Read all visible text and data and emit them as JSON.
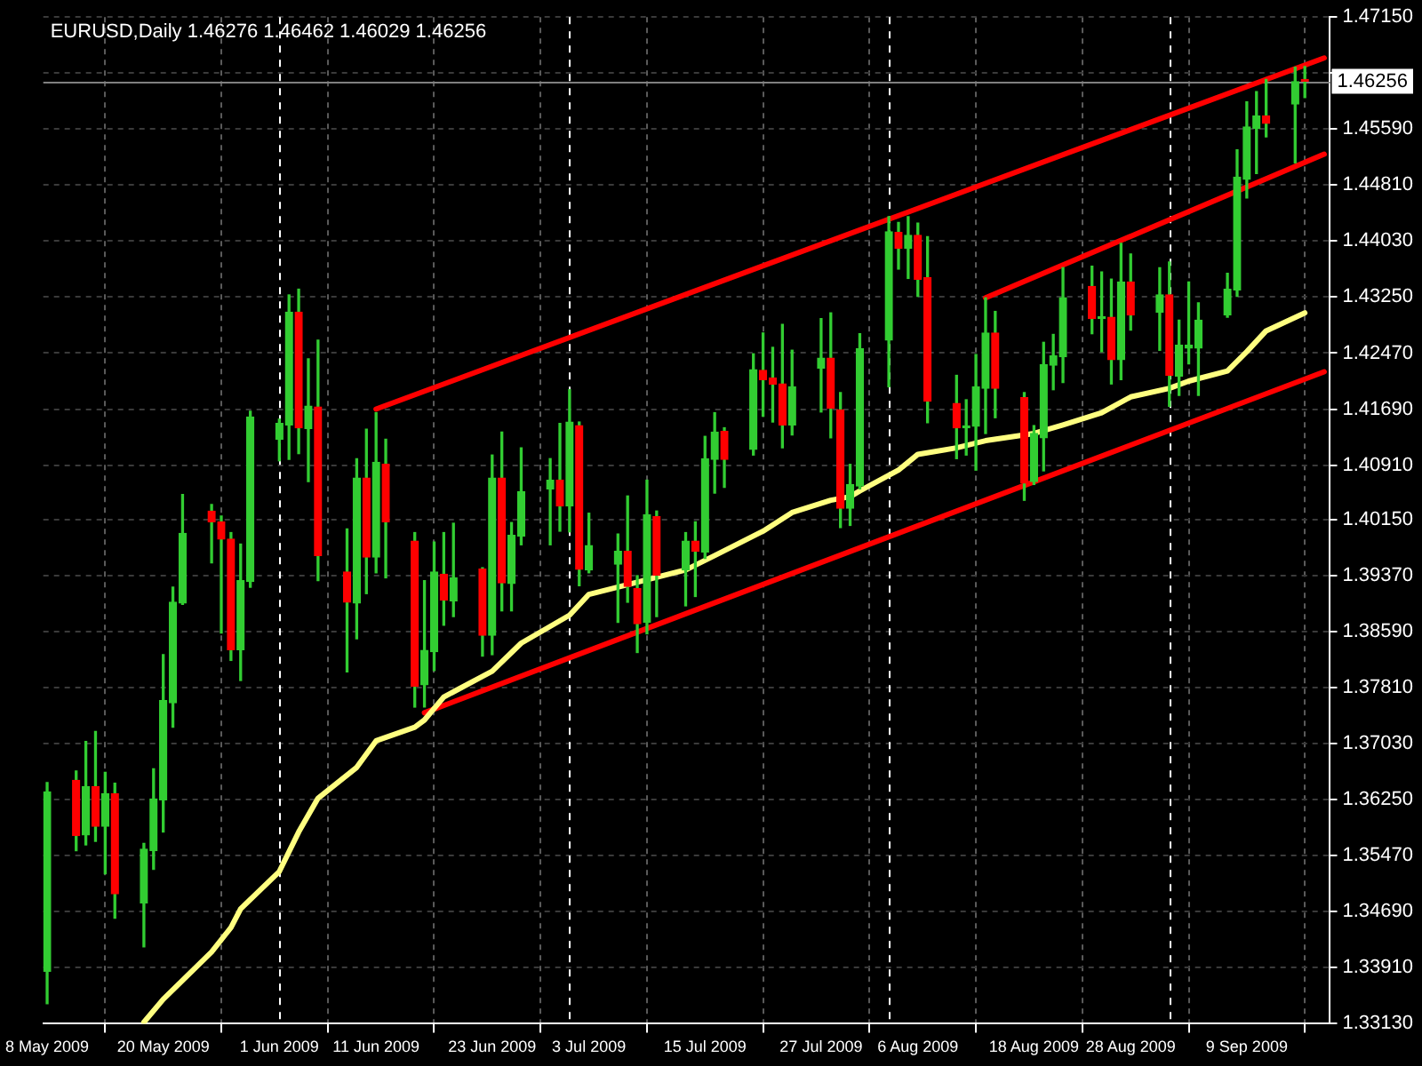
{
  "chart_data": {
    "type": "candlestick",
    "title": "EURUSD,Daily 1.46276 1.46462 1.46029 1.46256",
    "x": [
      "2009-05-08",
      "2009-05-11",
      "2009-05-12",
      "2009-05-13",
      "2009-05-14",
      "2009-05-15",
      "2009-05-18",
      "2009-05-19",
      "2009-05-20",
      "2009-05-21",
      "2009-05-22",
      "2009-05-25",
      "2009-05-26",
      "2009-05-27",
      "2009-05-28",
      "2009-05-29",
      "2009-06-01",
      "2009-06-02",
      "2009-06-03",
      "2009-06-04",
      "2009-06-05",
      "2009-06-08",
      "2009-06-09",
      "2009-06-10",
      "2009-06-11",
      "2009-06-12",
      "2009-06-15",
      "2009-06-16",
      "2009-06-17",
      "2009-06-18",
      "2009-06-19",
      "2009-06-22",
      "2009-06-23",
      "2009-06-24",
      "2009-06-25",
      "2009-06-26",
      "2009-06-29",
      "2009-06-30",
      "2009-07-01",
      "2009-07-02",
      "2009-07-03",
      "2009-07-06",
      "2009-07-07",
      "2009-07-08",
      "2009-07-09",
      "2009-07-10",
      "2009-07-13",
      "2009-07-14",
      "2009-07-15",
      "2009-07-16",
      "2009-07-17",
      "2009-07-20",
      "2009-07-21",
      "2009-07-22",
      "2009-07-23",
      "2009-07-24",
      "2009-07-27",
      "2009-07-28",
      "2009-07-29",
      "2009-07-30",
      "2009-07-31",
      "2009-08-03",
      "2009-08-04",
      "2009-08-05",
      "2009-08-06",
      "2009-08-07",
      "2009-08-10",
      "2009-08-11",
      "2009-08-12",
      "2009-08-13",
      "2009-08-14",
      "2009-08-17",
      "2009-08-18",
      "2009-08-19",
      "2009-08-20",
      "2009-08-21",
      "2009-08-24",
      "2009-08-25",
      "2009-08-26",
      "2009-08-27",
      "2009-08-28",
      "2009-08-31",
      "2009-09-01",
      "2009-09-02",
      "2009-09-03",
      "2009-09-04",
      "2009-09-07",
      "2009-09-08",
      "2009-09-09",
      "2009-09-10",
      "2009-09-11",
      "2009-09-14",
      "2009-09-15"
    ],
    "ohlc": [
      [
        1.3386,
        1.3649,
        1.3341,
        1.3636
      ],
      [
        1.3652,
        1.3665,
        1.3554,
        1.3575
      ],
      [
        1.3576,
        1.3706,
        1.3562,
        1.3643
      ],
      [
        1.3643,
        1.372,
        1.3567,
        1.3588
      ],
      [
        1.3588,
        1.3663,
        1.3522,
        1.3633
      ],
      [
        1.3633,
        1.3648,
        1.346,
        1.3494
      ],
      [
        1.3481,
        1.3564,
        1.342,
        1.3556
      ],
      [
        1.3554,
        1.3668,
        1.3528,
        1.3626
      ],
      [
        1.3625,
        1.3827,
        1.358,
        1.3763
      ],
      [
        1.376,
        1.3921,
        1.3726,
        1.39
      ],
      [
        1.3899,
        1.405,
        1.3897,
        1.3996
      ],
      [
        1.4027,
        1.4036,
        1.3955,
        1.4012
      ],
      [
        1.4012,
        1.402,
        1.3857,
        1.3988
      ],
      [
        1.3988,
        1.3997,
        1.3819,
        1.3834
      ],
      [
        1.3834,
        1.3981,
        1.3791,
        1.393
      ],
      [
        1.3929,
        1.4166,
        1.3921,
        1.4158
      ],
      [
        1.4127,
        1.4155,
        1.4097,
        1.4149
      ],
      [
        1.4147,
        1.4328,
        1.4099,
        1.4304
      ],
      [
        1.4304,
        1.4336,
        1.4107,
        1.4143
      ],
      [
        1.4142,
        1.4239,
        1.4068,
        1.4173
      ],
      [
        1.4172,
        1.4265,
        1.393,
        1.3965
      ],
      [
        1.3942,
        1.4002,
        1.3803,
        1.39
      ],
      [
        1.3899,
        1.41,
        1.3849,
        1.4073
      ],
      [
        1.4073,
        1.4141,
        1.3912,
        1.3963
      ],
      [
        1.3963,
        1.4164,
        1.3941,
        1.4095
      ],
      [
        1.4092,
        1.4127,
        1.3934,
        1.4012
      ],
      [
        1.3985,
        1.3997,
        1.3754,
        1.3783
      ],
      [
        1.3785,
        1.393,
        1.3754,
        1.3833
      ],
      [
        1.3831,
        1.3984,
        1.3805,
        1.3942
      ],
      [
        1.3939,
        1.3997,
        1.3868,
        1.3903
      ],
      [
        1.3902,
        1.401,
        1.388,
        1.3934
      ],
      [
        1.3946,
        1.3948,
        1.3825,
        1.3854
      ],
      [
        1.3854,
        1.4105,
        1.3827,
        1.4073
      ],
      [
        1.4073,
        1.4137,
        1.3888,
        1.3927
      ],
      [
        1.3926,
        1.4011,
        1.3888,
        1.3993
      ],
      [
        1.3992,
        1.4115,
        1.398,
        1.4054
      ],
      [
        1.4058,
        1.41,
        1.398,
        1.407
      ],
      [
        1.407,
        1.4149,
        1.3999,
        1.4034
      ],
      [
        1.4034,
        1.4196,
        1.3998,
        1.4151
      ],
      [
        1.4146,
        1.4151,
        1.3923,
        1.3946
      ],
      [
        1.3945,
        1.4024,
        1.3941,
        1.3979
      ],
      [
        1.3953,
        1.3995,
        1.3872,
        1.3971
      ],
      [
        1.3971,
        1.4048,
        1.39,
        1.3922
      ],
      [
        1.3919,
        1.3937,
        1.383,
        1.387
      ],
      [
        1.3872,
        1.407,
        1.3856,
        1.4022
      ],
      [
        1.4019,
        1.4027,
        1.388,
        1.3938
      ],
      [
        1.3945,
        1.3997,
        1.3895,
        1.3985
      ],
      [
        1.3985,
        1.4012,
        1.3908,
        1.3971
      ],
      [
        1.397,
        1.4131,
        1.3961,
        1.41
      ],
      [
        1.4099,
        1.4164,
        1.4052,
        1.4137
      ],
      [
        1.4138,
        1.4143,
        1.406,
        1.4099
      ],
      [
        1.4113,
        1.4246,
        1.4105,
        1.4224
      ],
      [
        1.4223,
        1.4275,
        1.4159,
        1.421
      ],
      [
        1.4212,
        1.4255,
        1.4151,
        1.4204
      ],
      [
        1.4204,
        1.4287,
        1.4115,
        1.4147
      ],
      [
        1.4147,
        1.4251,
        1.4133,
        1.42
      ],
      [
        1.4226,
        1.4295,
        1.4165,
        1.424
      ],
      [
        1.424,
        1.4303,
        1.4129,
        1.417
      ],
      [
        1.4168,
        1.4192,
        1.4004,
        1.4031
      ],
      [
        1.4031,
        1.4092,
        1.4007,
        1.4064
      ],
      [
        1.4062,
        1.4274,
        1.4058,
        1.4253
      ],
      [
        1.4265,
        1.4437,
        1.42,
        1.4416
      ],
      [
        1.4415,
        1.4429,
        1.4364,
        1.4393
      ],
      [
        1.4393,
        1.4437,
        1.4351,
        1.4411
      ],
      [
        1.4411,
        1.4428,
        1.4326,
        1.435
      ],
      [
        1.4352,
        1.4409,
        1.415,
        1.418
      ],
      [
        1.4177,
        1.4216,
        1.41,
        1.4143
      ],
      [
        1.4143,
        1.4182,
        1.4105,
        1.4145
      ],
      [
        1.4145,
        1.4245,
        1.4084,
        1.42
      ],
      [
        1.4198,
        1.4324,
        1.4135,
        1.4275
      ],
      [
        1.4275,
        1.4305,
        1.4157,
        1.4198
      ],
      [
        1.4185,
        1.4192,
        1.4042,
        1.4066
      ],
      [
        1.4068,
        1.4146,
        1.4064,
        1.4135
      ],
      [
        1.4129,
        1.4262,
        1.4083,
        1.4231
      ],
      [
        1.423,
        1.4273,
        1.4196,
        1.4243
      ],
      [
        1.4242,
        1.4366,
        1.4206,
        1.4324
      ],
      [
        1.434,
        1.4368,
        1.4274,
        1.4295
      ],
      [
        1.4295,
        1.436,
        1.4249,
        1.4297
      ],
      [
        1.4297,
        1.435,
        1.4204,
        1.4238
      ],
      [
        1.4238,
        1.44,
        1.421,
        1.4346
      ],
      [
        1.4346,
        1.4385,
        1.4279,
        1.43
      ],
      [
        1.4304,
        1.4366,
        1.4251,
        1.4328
      ],
      [
        1.4328,
        1.4374,
        1.4173,
        1.4216
      ],
      [
        1.4215,
        1.4293,
        1.4188,
        1.4258
      ],
      [
        1.4254,
        1.4346,
        1.4232,
        1.4258
      ],
      [
        1.4254,
        1.4317,
        1.4188,
        1.4293
      ],
      [
        1.43,
        1.4358,
        1.4297,
        1.4336
      ],
      [
        1.4335,
        1.453,
        1.4326,
        1.4492
      ],
      [
        1.4489,
        1.4597,
        1.4463,
        1.4562
      ],
      [
        1.456,
        1.4611,
        1.4497,
        1.4577
      ],
      [
        1.4577,
        1.4628,
        1.4548,
        1.4567
      ],
      [
        1.4594,
        1.4645,
        1.4512,
        1.4625
      ],
      [
        1.46276,
        1.46462,
        1.46029,
        1.46256
      ]
    ],
    "color": "#32cd32",
    "colors": [
      "#32cd32",
      "#ff0000",
      "#32cd32",
      "#ff0000",
      "#32cd32",
      "#ff0000",
      "#32cd32",
      "#32cd32",
      "#32cd32",
      "#32cd32",
      "#32cd32",
      "#ff0000",
      "#ff0000",
      "#ff0000",
      "#32cd32",
      "#32cd32",
      "#32cd32",
      "#32cd32",
      "#ff0000",
      "#32cd32",
      "#ff0000",
      "#ff0000",
      "#32cd32",
      "#ff0000",
      "#32cd32",
      "#ff0000",
      "#ff0000",
      "#32cd32",
      "#32cd32",
      "#ff0000",
      "#32cd32",
      "#ff0000",
      "#32cd32",
      "#ff0000",
      "#32cd32",
      "#32cd32",
      "#32cd32",
      "#ff0000",
      "#32cd32",
      "#ff0000",
      "#32cd32",
      "#32cd32",
      "#ff0000",
      "#ff0000",
      "#32cd32",
      "#ff0000",
      "#32cd32",
      "#ff0000",
      "#32cd32",
      "#32cd32",
      "#ff0000",
      "#32cd32",
      "#ff0000",
      "#ff0000",
      "#ff0000",
      "#32cd32",
      "#32cd32",
      "#ff0000",
      "#ff0000",
      "#32cd32",
      "#32cd32",
      "#32cd32",
      "#ff0000",
      "#32cd32",
      "#ff0000",
      "#ff0000",
      "#ff0000",
      "#32cd32",
      "#32cd32",
      "#32cd32",
      "#ff0000",
      "#ff0000",
      "#32cd32",
      "#32cd32",
      "#32cd32",
      "#32cd32",
      "#ff0000",
      "#32cd32",
      "#ff0000",
      "#32cd32",
      "#ff0000",
      "#32cd32",
      "#ff0000",
      "#32cd32",
      "#32cd32",
      "#32cd32",
      "#32cd32",
      "#32cd32",
      "#32cd32",
      "#32cd32",
      "#ff0000",
      "#32cd32",
      "#ff0000"
    ],
    "series": [
      {
        "type": "line",
        "color": "#ffff80",
        "x": [
          "2009-05-18",
          "2009-05-20",
          "2009-05-25",
          "2009-05-27",
          "2009-05-28",
          "2009-06-01",
          "2009-06-03",
          "2009-06-05",
          "2009-06-09",
          "2009-06-11",
          "2009-06-15",
          "2009-06-16",
          "2009-06-18",
          "2009-06-23",
          "2009-06-26",
          "2009-07-01",
          "2009-07-03",
          "2009-07-08",
          "2009-07-13",
          "2009-07-16",
          "2009-07-21",
          "2009-07-24",
          "2009-07-28",
          "2009-07-30",
          "2009-07-31",
          "2009-08-04",
          "2009-08-06",
          "2009-08-10",
          "2009-08-13",
          "2009-08-18",
          "2009-08-21",
          "2009-08-25",
          "2009-08-28",
          "2009-09-01",
          "2009-09-03",
          "2009-09-07",
          "2009-09-09",
          "2009-09-11",
          "2009-09-15"
        ],
        "values": [
          1.3315,
          1.3347,
          1.3413,
          1.3447,
          1.3473,
          1.3525,
          1.358,
          1.3627,
          1.367,
          1.3707,
          1.3726,
          1.3736,
          1.3768,
          1.3804,
          1.3843,
          1.3882,
          1.3911,
          1.3928,
          1.3945,
          1.3965,
          1.3999,
          1.4025,
          1.4042,
          1.4047,
          1.4055,
          1.4084,
          1.4106,
          1.4115,
          1.4125,
          1.4135,
          1.4147,
          1.4164,
          1.4186,
          1.4198,
          1.4208,
          1.4222,
          1.4249,
          1.4278,
          1.4303
        ]
      },
      {
        "type": "line",
        "color": "#ff0000",
        "x": [
          "2009-06-11",
          "2009-09-17"
        ],
        "values": [
          1.4169,
          1.4658
        ]
      },
      {
        "type": "line",
        "color": "#ff0000",
        "x": [
          "2009-06-16",
          "2009-09-17"
        ],
        "values": [
          1.3746,
          1.4221
        ]
      },
      {
        "type": "line",
        "color": "#ff0000",
        "x": [
          "2009-08-13",
          "2009-09-17"
        ],
        "values": [
          1.4324,
          1.4524
        ]
      }
    ],
    "xlim": [
      "2009-05-08",
      "2009-09-17"
    ],
    "xticks": [
      {
        "value": "2009-05-08",
        "label": "8 May 2009"
      },
      {
        "value": "2009-05-20",
        "label": "20 May 2009"
      },
      {
        "value": "2009-06-01",
        "label": "1 Jun 2009"
      },
      {
        "value": "2009-06-11",
        "label": "11 Jun 2009"
      },
      {
        "value": "2009-06-23",
        "label": "23 Jun 2009"
      },
      {
        "value": "2009-07-03",
        "label": "3 Jul 2009"
      },
      {
        "value": "2009-07-15",
        "label": "15 Jul 2009"
      },
      {
        "value": "2009-07-27",
        "label": "27 Jul 2009"
      },
      {
        "value": "2009-08-06",
        "label": "6 Aug 2009"
      },
      {
        "value": "2009-08-18",
        "label": "18 Aug 2009"
      },
      {
        "value": "2009-08-28",
        "label": "28 Aug 2009"
      },
      {
        "value": "2009-09-09",
        "label": "9 Sep 2009"
      }
    ],
    "ylim": [
      1.3313,
      1.4715
    ],
    "yticks": [
      {
        "value": 1.3313,
        "label": "1.33130"
      },
      {
        "value": 1.3391,
        "label": "1.33910"
      },
      {
        "value": 1.3469,
        "label": "1.34690"
      },
      {
        "value": 1.3547,
        "label": "1.35470"
      },
      {
        "value": 1.3625,
        "label": "1.36250"
      },
      {
        "value": 1.3703,
        "label": "1.37030"
      },
      {
        "value": 1.3781,
        "label": "1.37810"
      },
      {
        "value": 1.3859,
        "label": "1.38590"
      },
      {
        "value": 1.3937,
        "label": "1.39370"
      },
      {
        "value": 1.4015,
        "label": "1.40150"
      },
      {
        "value": 1.4091,
        "label": "1.40910"
      },
      {
        "value": 1.4169,
        "label": "1.41690"
      },
      {
        "value": 1.4247,
        "label": "1.42470"
      },
      {
        "value": 1.4325,
        "label": "1.43250"
      },
      {
        "value": 1.4403,
        "label": "1.44030"
      },
      {
        "value": 1.4481,
        "label": "1.44810"
      },
      {
        "value": 1.4559,
        "label": "1.45590"
      },
      {
        "value": 1.4637,
        "label": null
      },
      {
        "value": 1.4715,
        "label": "1.47150"
      }
    ],
    "ref_lines": [
      {
        "axis": "x",
        "value": "2009-06-01",
        "color": "#ffffff",
        "line_style": "dashed"
      },
      {
        "axis": "x",
        "value": "2009-07-01",
        "color": "#ffffff",
        "line_style": "dashed"
      },
      {
        "axis": "x",
        "value": "2009-08-03",
        "color": "#ffffff",
        "line_style": "dashed"
      },
      {
        "axis": "x",
        "value": "2009-09-01",
        "color": "#ffffff",
        "line_style": "dashed"
      },
      {
        "axis": "y",
        "value": 1.46256,
        "label": "1.46256",
        "color": "#808080",
        "line_style": "solid"
      }
    ],
    "grid": true,
    "legend": false
  }
}
